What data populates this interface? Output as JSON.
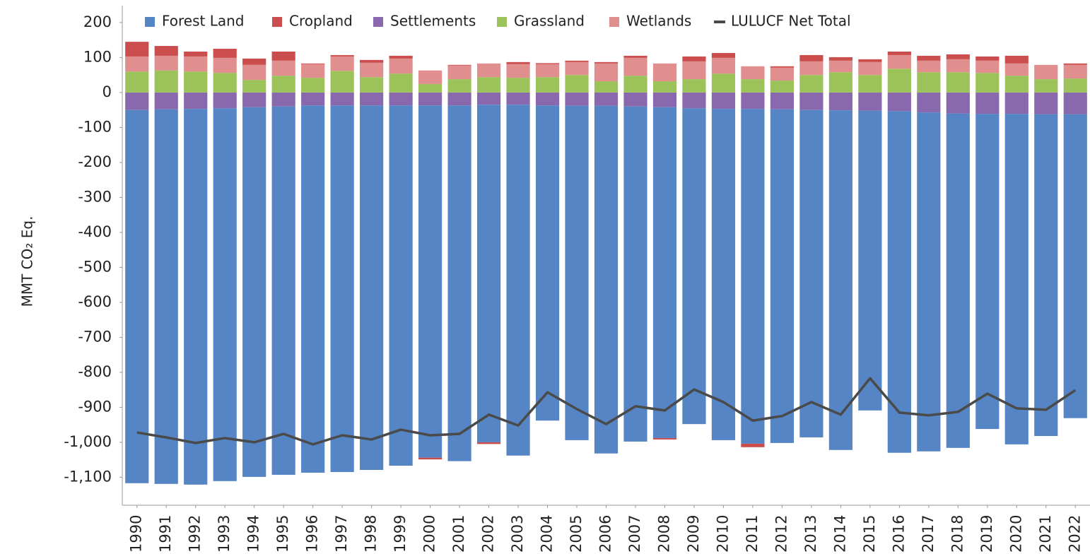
{
  "chart_data": {
    "type": "bar",
    "stacked": true,
    "y_label": "MMT CO₂ Eq.",
    "categories": [
      "1990",
      "1991",
      "1992",
      "1993",
      "1994",
      "1995",
      "1996",
      "1997",
      "1998",
      "1999",
      "2000",
      "2001",
      "2002",
      "2003",
      "2004",
      "2005",
      "2006",
      "2007",
      "2008",
      "2009",
      "2010",
      "2011",
      "2012",
      "2013",
      "2014",
      "2015",
      "2016",
      "2017",
      "2018",
      "2019",
      "2020",
      "2021",
      "2022"
    ],
    "series": [
      {
        "name": "Forest Land",
        "color": "#5585c5",
        "values": [
          -1067,
          -1071,
          -1074,
          -1066,
          -1057,
          -1053,
          -1050,
          -1048,
          -1042,
          -1030,
          -1007,
          -1017,
          -965,
          -1003,
          -901,
          -956,
          -994,
          -958,
          -946,
          -903,
          -947,
          -957,
          -954,
          -936,
          -971,
          -857,
          -977,
          -969,
          -956,
          -901,
          -945,
          -920,
          -869
        ]
      },
      {
        "name": "Cropland",
        "color": "#cc4d4d",
        "values": [
          42,
          28,
          14,
          26,
          18,
          26,
          2,
          4,
          8,
          8,
          -5,
          2,
          -5,
          6,
          3,
          4,
          4,
          6,
          -4,
          14,
          14,
          -10,
          4,
          18,
          10,
          8,
          10,
          14,
          14,
          12,
          22,
          0,
          4
        ]
      },
      {
        "name": "Settlements",
        "color": "#8a68ad",
        "values": [
          -50,
          -48,
          -47,
          -45,
          -42,
          -40,
          -37,
          -37,
          -37,
          -37,
          -37,
          -37,
          -35,
          -35,
          -37,
          -38,
          -38,
          -40,
          -42,
          -45,
          -47,
          -47,
          -48,
          -50,
          -51,
          -52,
          -53,
          -57,
          -60,
          -61,
          -61,
          -62,
          -62
        ]
      },
      {
        "name": "Grassland",
        "color": "#9bc35a",
        "values": [
          60,
          63,
          60,
          56,
          36,
          48,
          42,
          62,
          44,
          54,
          24,
          38,
          44,
          42,
          44,
          50,
          32,
          48,
          32,
          38,
          54,
          38,
          34,
          50,
          58,
          50,
          68,
          58,
          58,
          56,
          48,
          38,
          40
        ]
      },
      {
        "name": "Wetlands",
        "color": "#e08e8e",
        "values": [
          43,
          42,
          43,
          43,
          43,
          43,
          39,
          41,
          41,
          43,
          39,
          39,
          39,
          39,
          37,
          37,
          51,
          51,
          51,
          51,
          45,
          37,
          37,
          39,
          33,
          37,
          39,
          33,
          37,
          35,
          35,
          41,
          39
        ]
      },
      {
        "name": "LULUCF Net Total",
        "type": "line",
        "color": "#4a4a4a",
        "values": [
          -972,
          -986,
          -1002,
          -988,
          -1000,
          -976,
          -1006,
          -980,
          -992,
          -964,
          -980,
          -976,
          -921,
          -952,
          -857,
          -905,
          -948,
          -897,
          -909,
          -849,
          -885,
          -938,
          -925,
          -885,
          -921,
          -817,
          -915,
          -923,
          -913,
          -861,
          -903,
          -907,
          -851
        ]
      }
    ],
    "ylim": [
      -1180,
      220
    ],
    "yticks": [
      200,
      100,
      0,
      -100,
      -200,
      -300,
      -400,
      -500,
      -600,
      -700,
      -800,
      -900,
      {
        "value": -1000,
        "label": "-1,000"
      },
      {
        "value": -1100,
        "label": "-1,100"
      }
    ]
  }
}
